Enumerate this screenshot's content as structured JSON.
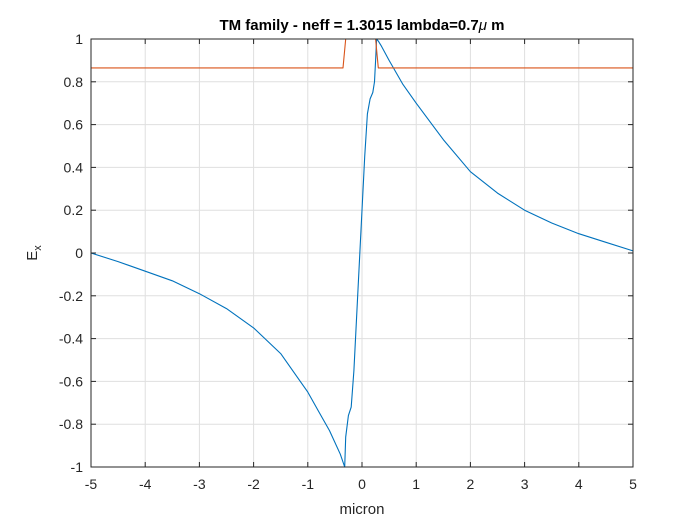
{
  "chart_data": {
    "type": "line",
    "title_parts": {
      "main": "TM family - neff = 1.3015  lambda=0.7",
      "mu": "μ",
      "unit": " m"
    },
    "xlabel": "micron",
    "ylabel": {
      "base": "E",
      "sub": "x"
    },
    "xlim": [
      -5,
      5
    ],
    "ylim": [
      -1,
      1
    ],
    "xticks": [
      -5,
      -4,
      -3,
      -2,
      -1,
      0,
      1,
      2,
      3,
      4,
      5
    ],
    "yticks": [
      -1,
      -0.8,
      -0.6,
      -0.4,
      -0.2,
      0,
      0.2,
      0.4,
      0.6,
      0.8,
      1
    ],
    "xtick_labels": [
      "-5",
      "-4",
      "-3",
      "-2",
      "-1",
      "0",
      "1",
      "2",
      "3",
      "4",
      "5"
    ],
    "ytick_labels": [
      "-1",
      "-0.8",
      "-0.6",
      "-0.4",
      "-0.2",
      "0",
      "0.2",
      "0.4",
      "0.6",
      "0.8",
      "1"
    ],
    "grid": true,
    "series": [
      {
        "color": "#0072BD",
        "x": [
          -5,
          -4.5,
          -4,
          -3.5,
          -3,
          -2.5,
          -2,
          -1.5,
          -1,
          -0.8,
          -0.6,
          -0.4,
          -0.32,
          -0.3,
          -0.25,
          -0.2,
          -0.15,
          -0.1,
          -0.05,
          0,
          0.05,
          0.1,
          0.15,
          0.2,
          0.23,
          0.25,
          0.27,
          0.3,
          0.35,
          0.5,
          0.75,
          1,
          1.5,
          2,
          2.5,
          3,
          3.5,
          4,
          4.5,
          5
        ],
        "y": [
          0,
          -0.04,
          -0.085,
          -0.13,
          -0.19,
          -0.26,
          -0.35,
          -0.47,
          -0.65,
          -0.74,
          -0.83,
          -0.94,
          -1.0,
          -0.86,
          -0.76,
          -0.72,
          -0.55,
          -0.3,
          -0.05,
          0.2,
          0.45,
          0.65,
          0.72,
          0.75,
          0.8,
          0.9,
          1.0,
          0.99,
          0.97,
          0.9,
          0.79,
          0.7,
          0.53,
          0.38,
          0.28,
          0.2,
          0.14,
          0.09,
          0.05,
          0.01
        ]
      },
      {
        "color": "#D95319",
        "x": [
          -5,
          -0.35,
          -0.3,
          0.25,
          0.3,
          5
        ],
        "y": [
          0.865,
          0.865,
          1.0,
          1.0,
          0.865,
          0.865
        ]
      }
    ]
  }
}
